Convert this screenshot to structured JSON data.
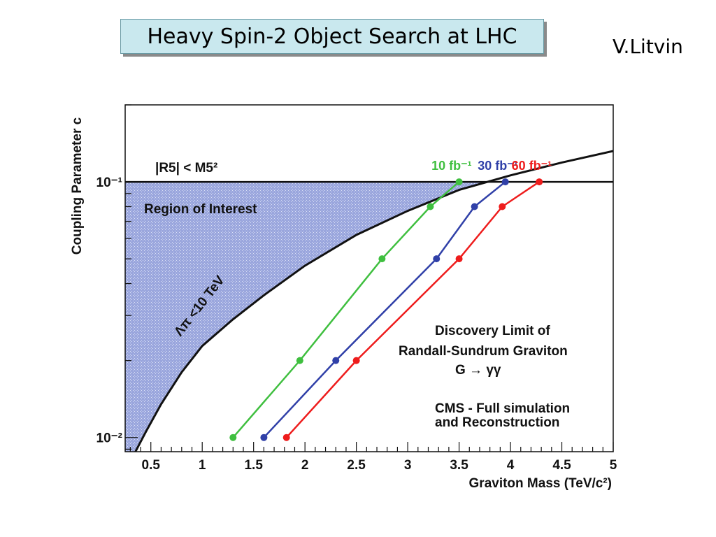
{
  "slide": {
    "title": "Heavy Spin-2 Object Search at LHC",
    "author": "V.Litvin"
  },
  "colors": {
    "green": "#3fbf3f",
    "blue": "#3040a8",
    "red": "#ee1c1c",
    "region_fill": "#9aa6dd",
    "title_box": "#c9e8ee"
  },
  "chart_data": {
    "type": "line",
    "xlabel": "Graviton Mass (TeV/c²)",
    "ylabel": "Coupling Parameter c",
    "xlim": [
      0.25,
      5
    ],
    "ylim": [
      0.0088,
      0.2
    ],
    "y_scale": "log",
    "x_ticks": [
      0.5,
      1,
      1.5,
      2,
      2.5,
      3,
      3.5,
      4,
      4.5,
      5
    ],
    "x_tick_labels": [
      "0.5",
      "1",
      "1.5",
      "2",
      "2.5",
      "3",
      "3.5",
      "4",
      "4.5",
      "5"
    ],
    "y_ticks": [
      0.01,
      0.1
    ],
    "y_tick_labels": [
      "10⁻²",
      "10⁻¹"
    ],
    "grid": false,
    "series": [
      {
        "name": "10 fb⁻¹",
        "color": "#3fbf3f",
        "x": [
          1.3,
          1.95,
          2.75,
          3.22,
          3.5
        ],
        "y": [
          0.01,
          0.02,
          0.05,
          0.08,
          0.1
        ]
      },
      {
        "name": "30 fb⁻¹",
        "color": "#3040a8",
        "x": [
          1.6,
          2.3,
          3.28,
          3.65,
          3.95
        ],
        "y": [
          0.01,
          0.02,
          0.05,
          0.08,
          0.1
        ]
      },
      {
        "name": "60 fb⁻¹",
        "color": "#ee1c1c",
        "x": [
          1.82,
          2.5,
          3.5,
          3.92,
          4.28
        ],
        "y": [
          0.01,
          0.02,
          0.05,
          0.08,
          0.1
        ]
      }
    ],
    "boundary_curve": {
      "label": "Λπ <10 TeV",
      "x": [
        0.35,
        0.45,
        0.6,
        0.8,
        1.0,
        1.3,
        1.6,
        2.0,
        2.5,
        3.0,
        3.5,
        4.0,
        4.5,
        5.0
      ],
      "y": [
        0.0088,
        0.0105,
        0.0135,
        0.018,
        0.0228,
        0.029,
        0.036,
        0.047,
        0.062,
        0.077,
        0.093,
        0.106,
        0.119,
        0.132
      ]
    },
    "horizontal_limit": {
      "label": "|R5| < M5²",
      "y": 0.1
    },
    "annotations": {
      "region": "Region of Interest",
      "discovery_line1": "Discovery Limit of",
      "discovery_line2": "Randall-Sundrum Graviton",
      "discovery_line3": "G → γγ",
      "cms_line1": "CMS - Full simulation",
      "cms_line2": "and Reconstruction"
    }
  }
}
